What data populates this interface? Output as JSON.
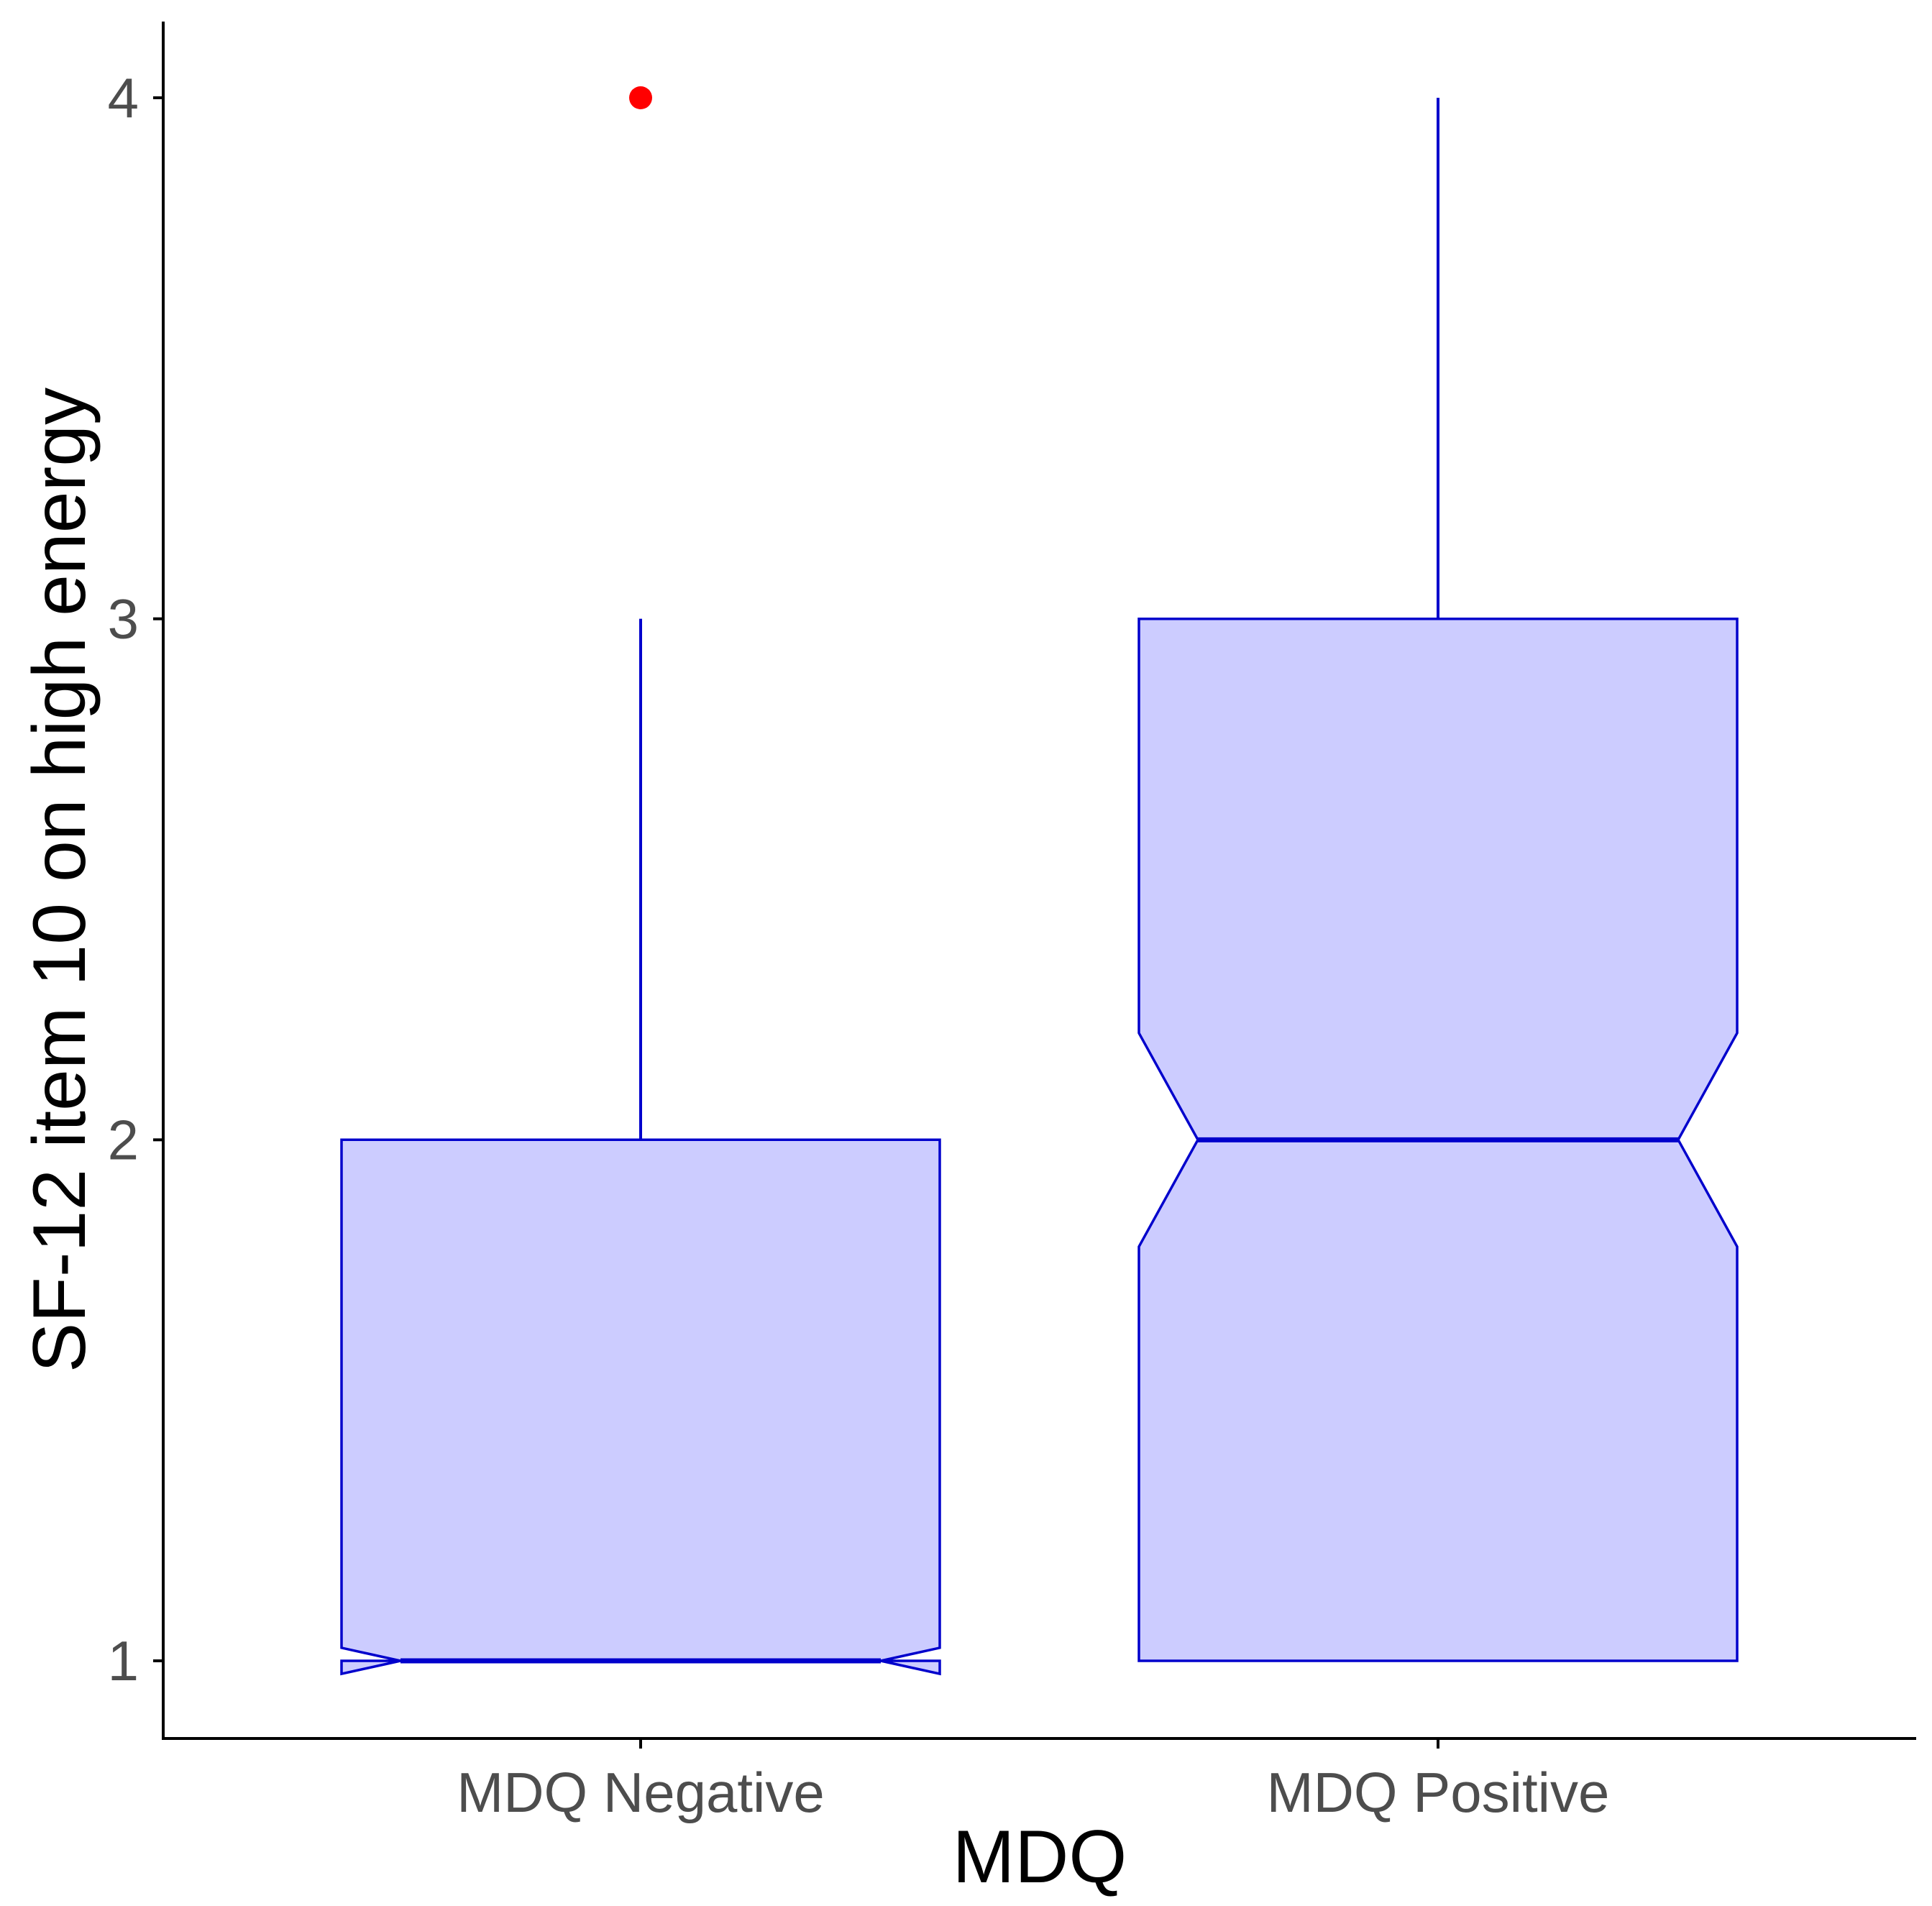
{
  "chart_data": {
    "type": "boxplot",
    "title": "",
    "xlabel": "MDQ",
    "ylabel": "SF-12 item 10 on high energy",
    "categories": [
      "MDQ Negative",
      "MDQ Positive"
    ],
    "yticks": [
      1,
      2,
      3,
      4
    ],
    "ylim": [
      0.85,
      4.15
    ],
    "notched": true,
    "boxes": [
      {
        "category": "MDQ Negative",
        "min": 1,
        "q1": 1,
        "median": 1,
        "q3": 2,
        "max": 3,
        "notch_low": 0.975,
        "notch_high": 1.025,
        "outliers": [
          4
        ]
      },
      {
        "category": "MDQ Positive",
        "min": 1,
        "q1": 1,
        "median": 2,
        "q3": 3,
        "max": 4,
        "notch_low": 1.795,
        "notch_high": 2.205,
        "outliers": []
      }
    ],
    "colors": {
      "box_fill": "#ccccff",
      "box_line": "#0000cc",
      "outlier": "#ff0000",
      "axis": "#000000",
      "tick_text": "#4d4d4d",
      "title_text": "#000000"
    }
  }
}
